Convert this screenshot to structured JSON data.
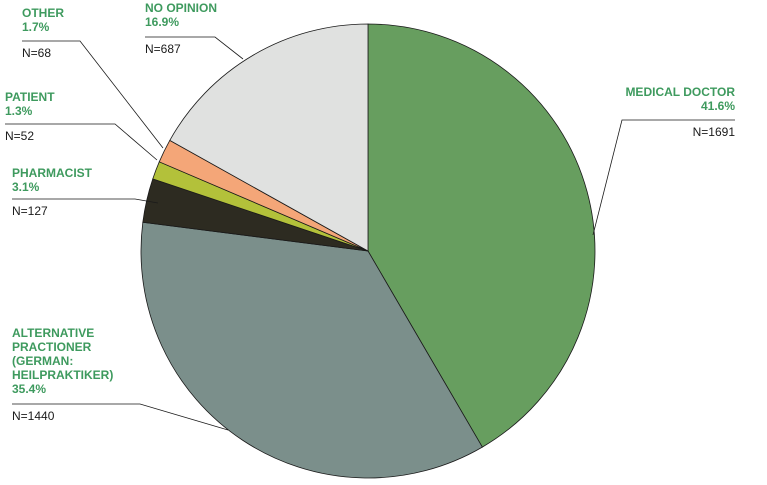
{
  "chart_data": {
    "type": "pie",
    "title": "",
    "slices": [
      {
        "name": "MEDICAL DOCTOR",
        "name_lines": [
          "MEDICAL DOCTOR"
        ],
        "percent_label": "41.6%",
        "n_label": "N=1691",
        "value": 1691,
        "color": "#679e5f"
      },
      {
        "name": "ALTERNATIVE PRACTIONER (GERMAN: HEILPRAKTIKER)",
        "name_lines": [
          "ALTERNATIVE",
          "PRACTIONER",
          "(GERMAN:",
          "HEILPRAKTIKER)"
        ],
        "percent_label": "35.4%",
        "n_label": "N=1440",
        "value": 1440,
        "color": "#7b8f8b"
      },
      {
        "name": "PHARMACIST",
        "name_lines": [
          "PHARMACIST"
        ],
        "percent_label": "3.1%",
        "n_label": "N=127",
        "value": 127,
        "color": "#2d2b21"
      },
      {
        "name": "PATIENT",
        "name_lines": [
          "PATIENT"
        ],
        "percent_label": "1.3%",
        "n_label": "N=52",
        "value": 52,
        "color": "#b3c13a"
      },
      {
        "name": "OTHER",
        "name_lines": [
          "OTHER"
        ],
        "percent_label": "1.7%",
        "n_label": "N=68",
        "value": 68,
        "color": "#f4a678"
      },
      {
        "name": "NO OPINION",
        "name_lines": [
          "NO OPINION"
        ],
        "percent_label": "16.9%",
        "n_label": "N=687",
        "value": 687,
        "color": "#e0e1e0"
      }
    ]
  }
}
